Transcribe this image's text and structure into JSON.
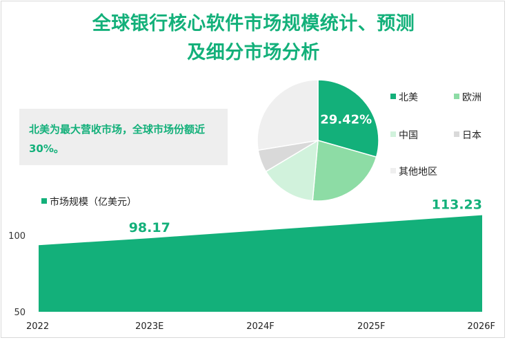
{
  "title_line1": "全球银行核心软件市场规模统计、预测",
  "title_line2": "及细分市场分析",
  "callout": "北美为最大营收市场，全球市场份额近30%。",
  "colors": {
    "accent": "#13b07a",
    "pie": [
      "#13b07a",
      "#8ddca5",
      "#d1f2dc",
      "#d9d9d9",
      "#efefef"
    ]
  },
  "chart_data": [
    {
      "type": "area",
      "categories": [
        "2022",
        "2023E",
        "2024F",
        "2025F",
        "2026F"
      ],
      "series": [
        {
          "name": "市场规模（亿美元）",
          "values": [
            93.6,
            98.17,
            103.2,
            108.2,
            113.23
          ]
        }
      ],
      "data_labels": [
        {
          "category": "2023E",
          "value": "98.17"
        },
        {
          "category": "2026F",
          "value": "113.23"
        }
      ],
      "yticks": [
        50,
        100
      ],
      "ylim": [
        50,
        120
      ],
      "legend": "top-left"
    },
    {
      "type": "pie",
      "labels": [
        "北美",
        "欧洲",
        "中国",
        "日本",
        "其他地区"
      ],
      "values": [
        29.42,
        22,
        15,
        6,
        27.58
      ],
      "data_labels": [
        "29.42%"
      ],
      "legend": "right"
    }
  ]
}
